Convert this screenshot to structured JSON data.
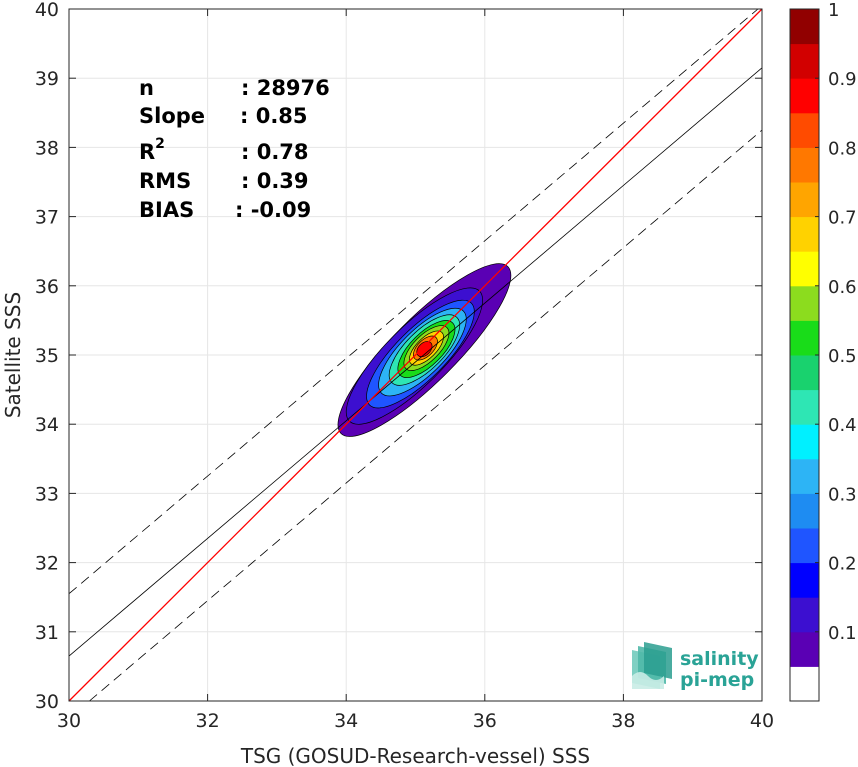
{
  "chart_data": {
    "type": "heatmap",
    "title": "",
    "xlabel": "TSG (GOSUD-Research-vessel) SSS",
    "ylabel": "Satellite SSS",
    "xlim": [
      30,
      40
    ],
    "ylim": [
      30,
      40
    ],
    "x_ticks": [
      "30",
      "32",
      "34",
      "36",
      "38",
      "40"
    ],
    "y_ticks": [
      "30",
      "31",
      "32",
      "33",
      "34",
      "35",
      "36",
      "37",
      "38",
      "39",
      "40"
    ],
    "grid": true,
    "colorbar": {
      "range": [
        0,
        1
      ],
      "ticks": [
        "0.1",
        "0.2",
        "0.3",
        "0.4",
        "0.5",
        "0.6",
        "0.7",
        "0.8",
        "0.9",
        "1"
      ],
      "tick_values": [
        0.1,
        0.2,
        0.3,
        0.4,
        0.5,
        0.6,
        0.7,
        0.8,
        0.9,
        1.0
      ],
      "colors": [
        "#ffffff",
        "#5a00b4",
        "#3c0fd0",
        "#0000ff",
        "#1f55ff",
        "#1e8cf2",
        "#2db4f5",
        "#00f0ff",
        "#2ee6b4",
        "#19d26e",
        "#19dc19",
        "#8cdc1e",
        "#ffff00",
        "#ffd200",
        "#ffa500",
        "#ff7800",
        "#ff4b00",
        "#ff0000",
        "#d20000",
        "#910000"
      ]
    },
    "reference_lines": {
      "one_to_one": {
        "color": "#ff0000",
        "points": [
          [
            30,
            30
          ],
          [
            40,
            40
          ]
        ]
      },
      "regression": {
        "color": "#000000",
        "style": "solid",
        "points": [
          [
            30,
            30.65
          ],
          [
            40,
            39.15
          ]
        ]
      },
      "upper_bound": {
        "color": "#000000",
        "style": "dashed",
        "points": [
          [
            30,
            31.55
          ],
          [
            40,
            40.05
          ]
        ]
      },
      "lower_bound": {
        "color": "#000000",
        "style": "dashed",
        "points": [
          [
            30,
            29.75
          ],
          [
            40,
            38.25
          ]
        ]
      }
    },
    "density_center": [
      35.1,
      35.1
    ],
    "density_levels": [
      0.05,
      0.1,
      0.2,
      0.3,
      0.4,
      0.5,
      0.6,
      0.7,
      0.8,
      0.9
    ]
  },
  "stats": [
    {
      "label": "n",
      "value": ": 28976"
    },
    {
      "label": "Slope",
      "value": ": 0.85"
    },
    {
      "label": "R",
      "sup": "2",
      "value": ": 0.78"
    },
    {
      "label": "RMS",
      "value": ": 0.39"
    },
    {
      "label": "BIAS",
      "value": ": -0.09"
    }
  ],
  "logo": {
    "line1": "salinity",
    "line2": "pi-mep"
  }
}
